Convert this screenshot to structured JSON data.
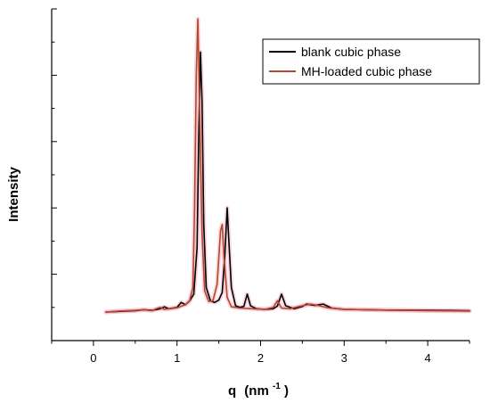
{
  "chart_data": {
    "type": "line",
    "title": "",
    "xlabel": {
      "main": "q",
      "unit_prefix": "(nm",
      "unit_exponent": "-1",
      "unit_suffix": ")"
    },
    "ylabel": "Intensity",
    "xlim": [
      -0.5,
      4.5
    ],
    "ylim": [
      0,
      100
    ],
    "xticks": [
      0,
      1,
      2,
      3,
      4
    ],
    "x_minor_ticks": [
      -0.5,
      0.5,
      1.5,
      2.5,
      3.5,
      4.5
    ],
    "y_tick_labels_shown": false,
    "yticks": [
      0,
      10,
      20,
      30,
      40,
      50,
      60,
      70,
      80,
      90,
      100
    ],
    "legend_position": "top-right",
    "grid": false,
    "series": [
      {
        "name": "blank cubic phase",
        "color": "#000000",
        "points": [
          [
            0.15,
            8.6
          ],
          [
            0.3,
            8.8
          ],
          [
            0.5,
            9.0
          ],
          [
            0.6,
            9.3
          ],
          [
            0.7,
            9.1
          ],
          [
            0.8,
            9.6
          ],
          [
            0.85,
            10.2
          ],
          [
            0.9,
            9.6
          ],
          [
            1.0,
            10.0
          ],
          [
            1.05,
            11.5
          ],
          [
            1.1,
            10.8
          ],
          [
            1.15,
            12.0
          ],
          [
            1.2,
            14.0
          ],
          [
            1.24,
            28.0
          ],
          [
            1.26,
            62.0
          ],
          [
            1.28,
            87.0
          ],
          [
            1.3,
            72.0
          ],
          [
            1.32,
            35.0
          ],
          [
            1.35,
            16.0
          ],
          [
            1.4,
            12.0
          ],
          [
            1.45,
            11.5
          ],
          [
            1.5,
            12.2
          ],
          [
            1.54,
            14.5
          ],
          [
            1.57,
            25.0
          ],
          [
            1.6,
            40.0
          ],
          [
            1.62,
            30.0
          ],
          [
            1.65,
            16.0
          ],
          [
            1.7,
            10.5
          ],
          [
            1.75,
            10.0
          ],
          [
            1.8,
            10.3
          ],
          [
            1.84,
            14.0
          ],
          [
            1.88,
            10.5
          ],
          [
            1.95,
            9.6
          ],
          [
            2.05,
            9.4
          ],
          [
            2.15,
            9.6
          ],
          [
            2.2,
            10.4
          ],
          [
            2.25,
            14.0
          ],
          [
            2.3,
            10.5
          ],
          [
            2.4,
            9.6
          ],
          [
            2.5,
            10.3
          ],
          [
            2.55,
            11.0
          ],
          [
            2.65,
            10.6
          ],
          [
            2.75,
            11.0
          ],
          [
            2.85,
            9.8
          ],
          [
            3.0,
            9.4
          ],
          [
            3.5,
            9.2
          ],
          [
            4.0,
            9.1
          ],
          [
            4.5,
            9.0
          ]
        ]
      },
      {
        "name": "MH-loaded cubic phase",
        "color": "#b5482c",
        "points": [
          [
            0.15,
            8.6
          ],
          [
            0.3,
            8.9
          ],
          [
            0.5,
            9.1
          ],
          [
            0.6,
            9.3
          ],
          [
            0.7,
            9.0
          ],
          [
            0.75,
            9.6
          ],
          [
            0.8,
            10.0
          ],
          [
            0.85,
            9.4
          ],
          [
            1.0,
            9.9
          ],
          [
            1.1,
            10.8
          ],
          [
            1.15,
            12.0
          ],
          [
            1.19,
            16.0
          ],
          [
            1.21,
            40.0
          ],
          [
            1.23,
            80.0
          ],
          [
            1.25,
            97.0
          ],
          [
            1.27,
            70.0
          ],
          [
            1.3,
            32.0
          ],
          [
            1.33,
            15.0
          ],
          [
            1.38,
            11.8
          ],
          [
            1.43,
            12.0
          ],
          [
            1.48,
            17.0
          ],
          [
            1.52,
            33.0
          ],
          [
            1.54,
            35.0
          ],
          [
            1.56,
            26.0
          ],
          [
            1.6,
            13.0
          ],
          [
            1.65,
            10.2
          ],
          [
            1.75,
            9.8
          ],
          [
            1.9,
            9.6
          ],
          [
            2.05,
            9.4
          ],
          [
            2.15,
            10.0
          ],
          [
            2.2,
            12.0
          ],
          [
            2.25,
            9.8
          ],
          [
            2.35,
            9.6
          ],
          [
            2.5,
            10.5
          ],
          [
            2.6,
            11.0
          ],
          [
            2.7,
            10.5
          ],
          [
            2.8,
            9.9
          ],
          [
            3.0,
            9.4
          ],
          [
            3.5,
            9.2
          ],
          [
            4.0,
            9.0
          ],
          [
            4.5,
            8.9
          ]
        ]
      }
    ]
  }
}
